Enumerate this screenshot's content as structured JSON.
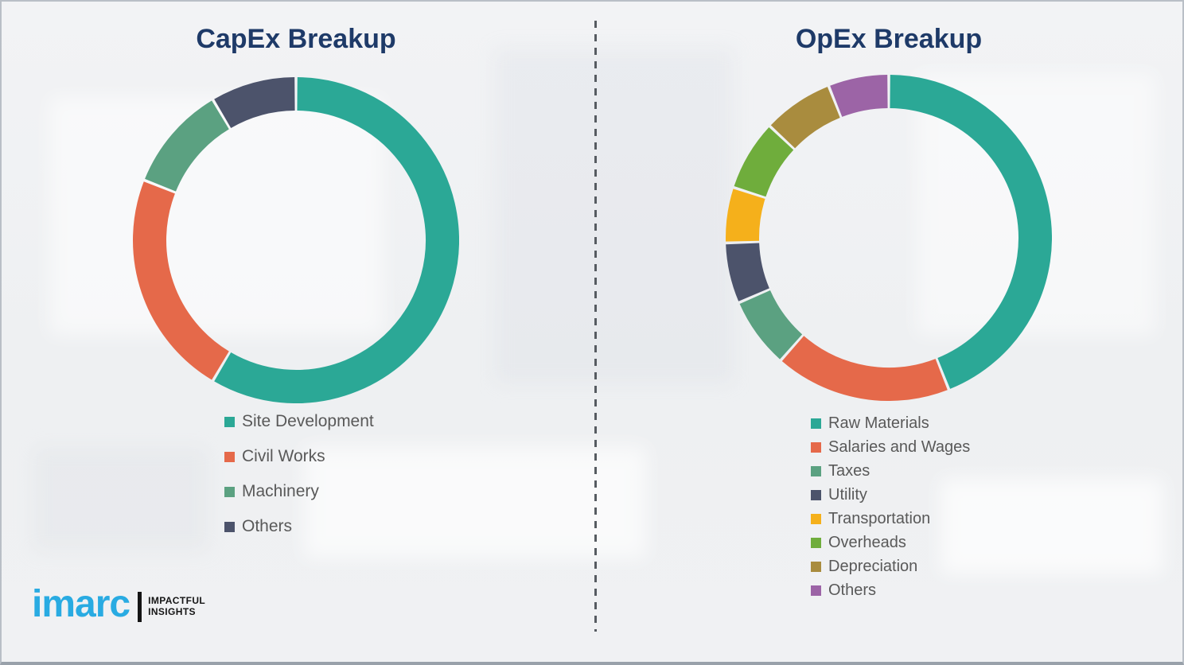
{
  "page": {
    "divider_color": "#565b61",
    "background_color": "#f0f1f3",
    "title_color": "#1e3a68",
    "legend_text_color": "#595959"
  },
  "chart_data": [
    {
      "type": "pie",
      "subtype": "donut",
      "title": "CapEx Breakup",
      "labels": [
        "Site Development",
        "Civil Works",
        "Machinery",
        "Others"
      ],
      "values": [
        58.5,
        22.5,
        10.5,
        8.5
      ],
      "unit": "percent",
      "colors": [
        "#2ba896",
        "#e5694a",
        "#5ba181",
        "#4c536b"
      ],
      "start_angle_deg": 0,
      "direction": "clockwise",
      "segment_gap_deg": 1,
      "data_labels": "none",
      "legend_position": "below-left"
    },
    {
      "type": "pie",
      "subtype": "donut",
      "title": "OpEx Breakup",
      "labels": [
        "Raw Materials",
        "Salaries and Wages",
        "Taxes",
        "Utility",
        "Transportation",
        "Overheads",
        "Depreciation",
        "Others"
      ],
      "values": [
        44,
        17.5,
        7,
        6,
        5.5,
        7,
        7,
        6
      ],
      "unit": "percent",
      "colors": [
        "#2ba896",
        "#e5694a",
        "#5ba181",
        "#4c536b",
        "#f5b01b",
        "#6fad3c",
        "#a98c3e",
        "#9c64a6"
      ],
      "start_angle_deg": 0,
      "direction": "clockwise",
      "segment_gap_deg": 1,
      "data_labels": "none",
      "legend_position": "below-left"
    }
  ],
  "logo": {
    "brand": "imarc",
    "brand_color": "#29abe2",
    "tagline_line1": "IMPACTFUL",
    "tagline_line2": "INSIGHTS"
  }
}
